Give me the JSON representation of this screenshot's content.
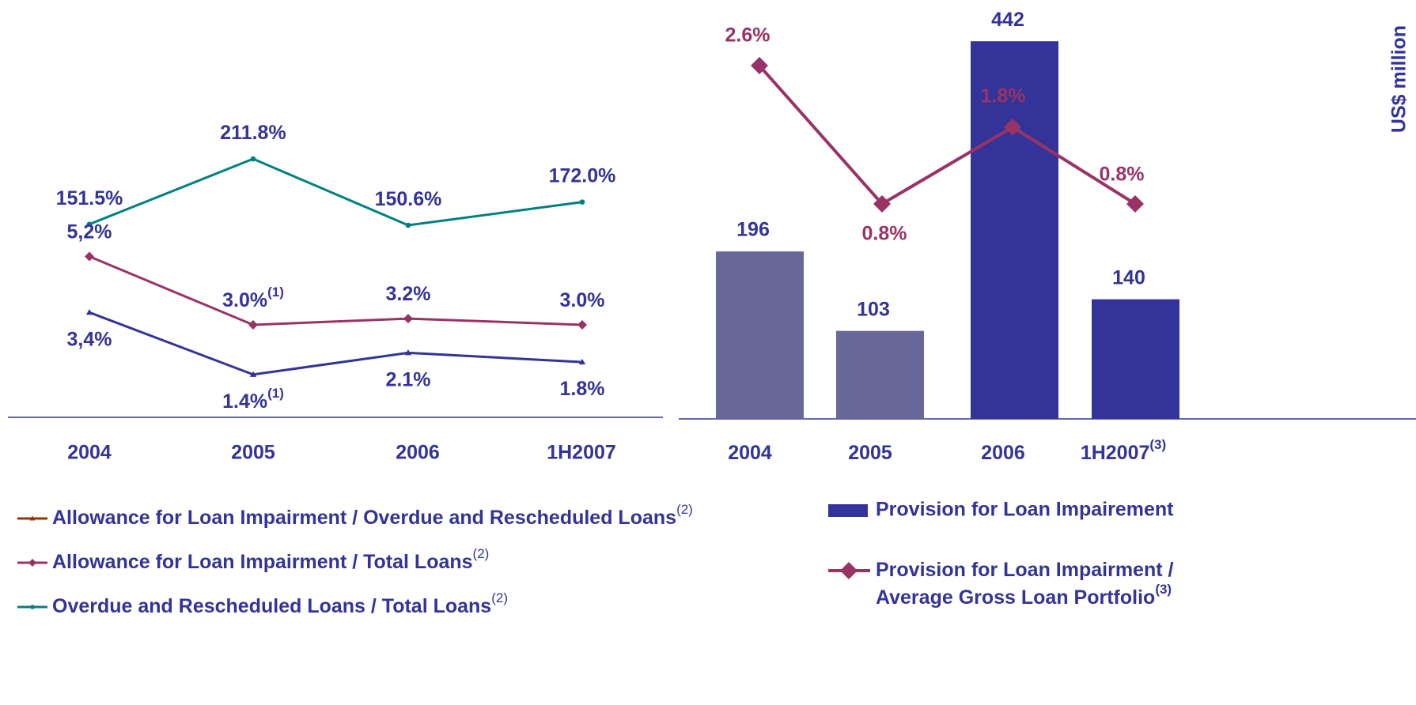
{
  "chart_data": [
    {
      "type": "line",
      "categories": [
        "2004",
        "2005",
        "2006",
        "1H2007"
      ],
      "series": [
        {
          "name": "Overdue and Rescheduled Loans / Total Loans",
          "name_note": "(2)",
          "color": "#008080",
          "legend_color": "#008080",
          "marker": "circle",
          "values": [
            151.5,
            211.8,
            150.6,
            172.0
          ],
          "value_labels": [
            "151.5%",
            "211.8%",
            "150.6%",
            "172.0%"
          ]
        },
        {
          "name": "Allowance for Loan Impairment / Total Loans",
          "name_note": "(2)",
          "color": "#993366",
          "legend_color": "#993366",
          "marker": "diamond",
          "values": [
            5.2,
            3.0,
            3.2,
            3.0
          ],
          "value_labels": [
            "5,2%",
            "3.0%",
            "3.2%",
            "3.0%"
          ],
          "value_label_notes": [
            null,
            "(1)",
            null,
            null
          ]
        },
        {
          "name": "Allowance for Loan Impairment / Overdue and Rescheduled Loans",
          "name_note": "(2)",
          "color": "#333399",
          "legend_color": "#993300",
          "marker": "triangle",
          "values": [
            3.4,
            1.4,
            2.1,
            1.8
          ],
          "value_labels": [
            "3,4%",
            "1.4%",
            "2.1%",
            "1.8%"
          ],
          "value_label_notes": [
            null,
            "(1)",
            null,
            null
          ]
        }
      ]
    },
    {
      "type": "bar_line",
      "y_axis_label": "US$  million",
      "categories": [
        "2004",
        "2005",
        "2006",
        "1H2007"
      ],
      "category_notes": [
        null,
        null,
        null,
        "(3)"
      ],
      "series": [
        {
          "name": "Provision for Loan Impairement",
          "type": "bar",
          "colors": [
            "#67679a",
            "#67679a",
            "#333399",
            "#333399"
          ],
          "color": "#333399",
          "values": [
            196,
            103,
            442,
            140
          ]
        },
        {
          "name": "Provision for Loan Impairment / Average Gross Loan Portfolio",
          "name_note": "(3)",
          "type": "line",
          "color": "#993366",
          "marker": "diamond",
          "values": [
            2.6,
            0.8,
            1.8,
            0.8
          ],
          "value_labels": [
            "2.6%",
            "0.8%",
            "1.8%",
            "0.8%"
          ]
        }
      ]
    }
  ]
}
